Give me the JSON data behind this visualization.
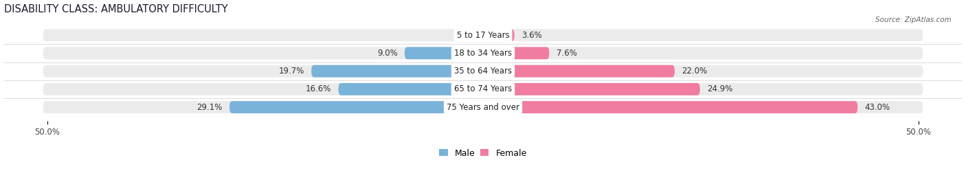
{
  "title": "DISABILITY CLASS: AMBULATORY DIFFICULTY",
  "source": "Source: ZipAtlas.com",
  "categories": [
    "5 to 17 Years",
    "18 to 34 Years",
    "35 to 64 Years",
    "65 to 74 Years",
    "75 Years and over"
  ],
  "male_values": [
    0.0,
    9.0,
    19.7,
    16.6,
    29.1
  ],
  "female_values": [
    3.6,
    7.6,
    22.0,
    24.9,
    43.0
  ],
  "male_color": "#7ab3d9",
  "female_color": "#f07ca0",
  "male_color_light": "#b8d4ea",
  "female_color_light": "#f5b8ce",
  "row_bg_color": "#ebebeb",
  "max_value": 50.0,
  "title_fontsize": 10.5,
  "label_fontsize": 8.5,
  "tick_fontsize": 8.5,
  "legend_fontsize": 9
}
